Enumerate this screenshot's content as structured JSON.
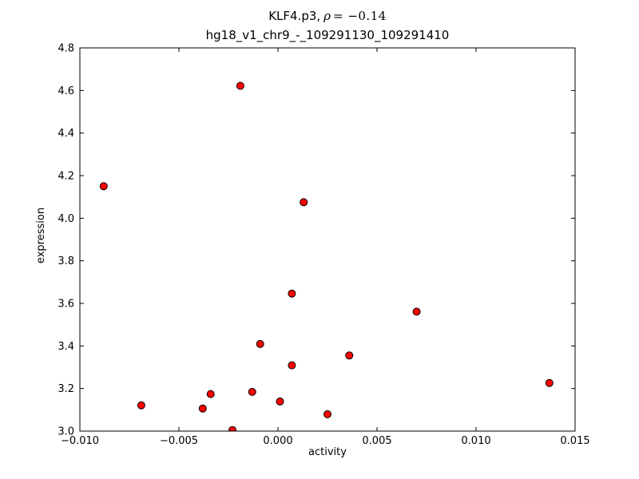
{
  "chart_data": {
    "type": "scatter",
    "title": "KLF4.p3, ρ = −0.14",
    "title_segments": {
      "prefix": "KLF4.p3,",
      "rho": "ρ",
      "eq": "= −0.14"
    },
    "subtitle": "hg18_v1_chr9_-_109291130_109291410",
    "xlabel": "activity",
    "ylabel": "expression",
    "xlim": [
      -0.01,
      0.015
    ],
    "ylim": [
      3.0,
      4.8
    ],
    "grid": false,
    "legend": null,
    "background_color": "#ffffff",
    "axis_color": "#000000",
    "marker": {
      "shape": "circle",
      "fill": "#ff0000",
      "edge": "#000000",
      "radius": 4.5
    },
    "xticks": {
      "values": [
        -0.01,
        -0.005,
        0.0,
        0.005,
        0.01,
        0.015
      ],
      "labels": [
        "−0.010",
        "−0.005",
        "0.000",
        "0.005",
        "0.010",
        "0.015"
      ]
    },
    "yticks": {
      "values": [
        3.0,
        3.2,
        3.4,
        3.6,
        3.8,
        4.0,
        4.2,
        4.4,
        4.6,
        4.8
      ],
      "labels": [
        "3.0",
        "3.2",
        "3.4",
        "3.6",
        "3.8",
        "4.0",
        "4.2",
        "4.4",
        "4.6",
        "4.8"
      ]
    },
    "points": [
      {
        "x": -0.0019,
        "y": 4.622
      },
      {
        "x": -0.0088,
        "y": 4.15
      },
      {
        "x": 0.0013,
        "y": 4.075
      },
      {
        "x": 0.0007,
        "y": 3.646
      },
      {
        "x": 0.007,
        "y": 3.561
      },
      {
        "x": -0.0009,
        "y": 3.409
      },
      {
        "x": 0.0036,
        "y": 3.355
      },
      {
        "x": 0.0007,
        "y": 3.309
      },
      {
        "x": 0.0137,
        "y": 3.226
      },
      {
        "x": -0.0013,
        "y": 3.184
      },
      {
        "x": -0.0034,
        "y": 3.174
      },
      {
        "x": 0.0001,
        "y": 3.139
      },
      {
        "x": -0.0069,
        "y": 3.121
      },
      {
        "x": -0.0038,
        "y": 3.106
      },
      {
        "x": 0.0025,
        "y": 3.079
      },
      {
        "x": -0.0023,
        "y": 3.005
      }
    ]
  }
}
